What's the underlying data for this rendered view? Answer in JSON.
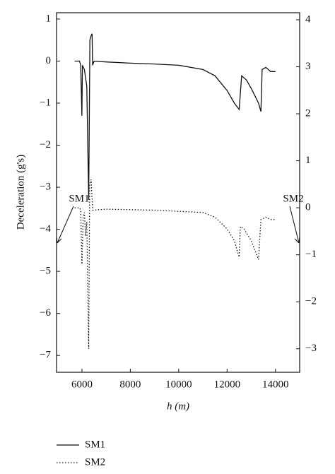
{
  "chart_data": {
    "type": "line",
    "xlabel": "h (m)",
    "ylabel": "Deceleration (g's)",
    "xlim": [
      4950,
      15000
    ],
    "xticks": [
      6000,
      8000,
      10000,
      12000,
      14000
    ],
    "ylim": [
      -7.4,
      1.15
    ],
    "yticks": [
      1,
      0,
      {
        "value": -1,
        "label": "−1"
      },
      {
        "value": -2,
        "label": "−2"
      },
      {
        "value": -3,
        "label": "−3"
      },
      {
        "value": -4,
        "label": "−4"
      },
      {
        "value": -5,
        "label": "−5"
      },
      {
        "value": -6,
        "label": "−6"
      },
      {
        "value": -7,
        "label": "−7"
      }
    ],
    "y2lim": [
      -3.5,
      4.15
    ],
    "y2ticks": [
      4,
      3,
      2,
      1,
      0,
      {
        "value": -1,
        "label": "−1"
      },
      {
        "value": -2,
        "label": "−2"
      },
      {
        "value": -3,
        "label": "−3"
      }
    ],
    "annotations": [
      "SM1",
      "SM2"
    ],
    "series": [
      {
        "name": "SM1",
        "color": "#111111",
        "dash": "solid",
        "x": [
          5700,
          5900,
          5950,
          6000,
          6020,
          6100,
          6200,
          6280,
          6330,
          6380,
          6420,
          6440,
          6500,
          7000,
          8000,
          9000,
          10000,
          11000,
          11500,
          12000,
          12300,
          12500,
          12600,
          12800,
          13000,
          13300,
          13400,
          13450,
          13600,
          13800,
          14000
        ],
        "values": [
          0,
          0,
          -0.1,
          -1.3,
          -0.1,
          -0.2,
          -0.6,
          -3.3,
          0.5,
          0.6,
          0.65,
          -0.1,
          0,
          -0.02,
          -0.05,
          -0.07,
          -0.1,
          -0.2,
          -0.35,
          -0.7,
          -1.0,
          -1.15,
          -0.35,
          -0.45,
          -0.65,
          -1.0,
          -1.2,
          -0.2,
          -0.15,
          -0.25,
          -0.25
        ]
      },
      {
        "name": "SM2",
        "color": "#111111",
        "dash": "dotted",
        "axis": "y2",
        "x": [
          5700,
          5900,
          5950,
          6000,
          6050,
          6100,
          6150,
          6200,
          6280,
          6320,
          6380,
          6420,
          6450,
          7000,
          9000,
          11000,
          11500,
          12000,
          12300,
          12500,
          12550,
          12700,
          13000,
          13300,
          13400,
          13600,
          13800,
          14000
        ],
        "values": [
          0,
          0,
          -0.05,
          -1.2,
          -0.2,
          -0.1,
          -0.6,
          -0.3,
          -3.0,
          0.5,
          0.6,
          0.2,
          -0.05,
          -0.03,
          -0.05,
          -0.1,
          -0.2,
          -0.45,
          -0.7,
          -1.05,
          -0.4,
          -0.45,
          -0.7,
          -1.1,
          -0.25,
          -0.2,
          -0.25,
          -0.25
        ]
      }
    ]
  }
}
